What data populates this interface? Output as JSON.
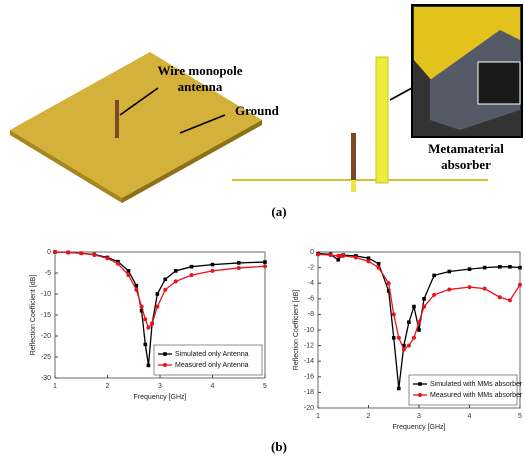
{
  "illustration": {
    "wire_label": [
      "Wire monopole",
      "antenna"
    ],
    "ground_label": "Ground",
    "absorber_label": [
      "Metamaterial",
      "absorber"
    ]
  },
  "captions": {
    "a": "(a)",
    "b": "(b)"
  },
  "chart_data": [
    {
      "type": "line",
      "xlabel": "Frequency [GHz]",
      "ylabel": "Reflection Coefficient [dB]",
      "x": [
        1,
        1.25,
        1.5,
        1.75,
        2,
        2.2,
        2.4,
        2.55,
        2.65,
        2.72,
        2.78,
        2.85,
        2.95,
        3.1,
        3.3,
        3.6,
        4,
        4.5,
        5
      ],
      "series": [
        {
          "name": "Simulated only Antenna",
          "color": "#000000",
          "marker": "square",
          "values": [
            0,
            -0.1,
            -0.3,
            -0.6,
            -1.3,
            -2.3,
            -4.5,
            -8,
            -14,
            -22,
            -27,
            -17,
            -10,
            -6.5,
            -4.5,
            -3.5,
            -3,
            -2.6,
            -2.4
          ]
        },
        {
          "name": "Measured only Antenna",
          "color": "#e8141c",
          "marker": "circle",
          "values": [
            0,
            -0.1,
            -0.3,
            -0.7,
            -1.5,
            -2.8,
            -5.5,
            -9,
            -13,
            -16,
            -18,
            -17,
            -13,
            -9,
            -7,
            -5.5,
            -4.5,
            -3.8,
            -3.4
          ]
        }
      ],
      "xlim": [
        1,
        5
      ],
      "xticks": [
        1,
        2,
        3,
        4,
        5
      ],
      "ylim": [
        -30,
        0
      ],
      "yticks": [
        0,
        -5,
        -10,
        -15,
        -20,
        -25,
        -30
      ],
      "grid": false,
      "legend": "lower-right"
    },
    {
      "type": "line",
      "xlabel": "Frequency [GHz]",
      "ylabel": "Reflection Coefficient [dB]",
      "x": [
        1,
        1.25,
        1.4,
        1.45,
        1.5,
        1.75,
        2,
        2.2,
        2.4,
        2.5,
        2.6,
        2.7,
        2.8,
        2.9,
        3,
        3.1,
        3.3,
        3.6,
        4,
        4.3,
        4.6,
        4.8,
        5
      ],
      "series": [
        {
          "name": "Simulated with MMs absorber",
          "color": "#000000",
          "marker": "square",
          "values": [
            -0.2,
            -0.3,
            -1,
            -0.5,
            -0.4,
            -0.5,
            -0.8,
            -1.5,
            -5,
            -11,
            -17.5,
            -12,
            -9,
            -7,
            -10,
            -6,
            -3,
            -2.5,
            -2.2,
            -2,
            -1.9,
            -1.9,
            -2
          ]
        },
        {
          "name": "Measured with MMs absorber",
          "color": "#e8141c",
          "marker": "circle",
          "values": [
            -0.3,
            -0.4,
            -0.5,
            -0.5,
            -0.5,
            -0.7,
            -1.2,
            -2,
            -4,
            -8,
            -11,
            -12.5,
            -12,
            -11,
            -9,
            -7,
            -5.5,
            -4.8,
            -4.5,
            -4.7,
            -5.8,
            -6.2,
            -4.2
          ]
        }
      ],
      "xlim": [
        1,
        5
      ],
      "xticks": [
        1,
        2,
        3,
        4,
        5
      ],
      "ylim": [
        -20,
        0
      ],
      "yticks": [
        0,
        -2,
        -4,
        -6,
        -8,
        -10,
        -12,
        -14,
        -16,
        -18,
        -20
      ],
      "grid": false,
      "legend": "lower-right"
    }
  ]
}
